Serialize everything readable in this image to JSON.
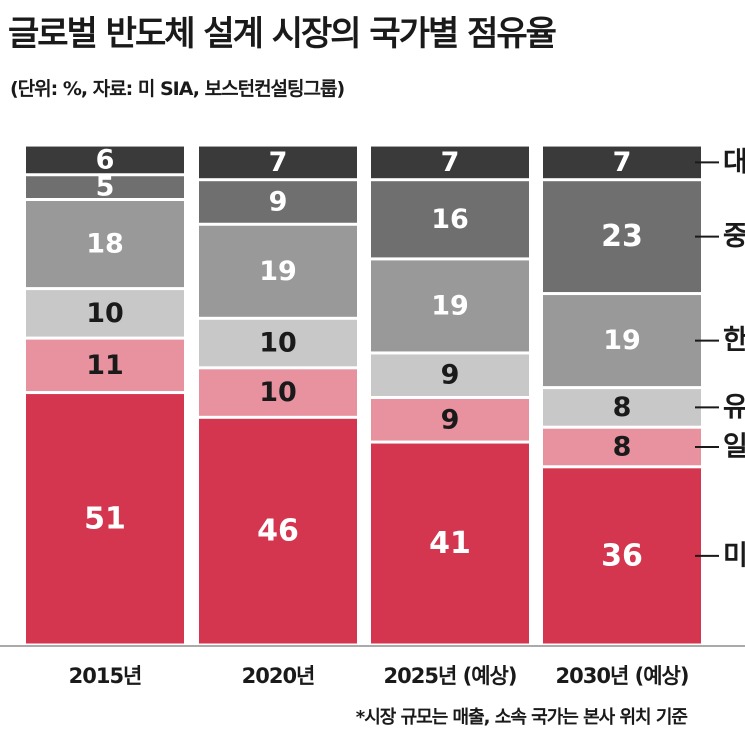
{
  "title": "글로벌 반도체 설계 시장의 국가별 점유율",
  "subtitle": "(단위: %, 자료: 미 SIA, 보스턴컨설팅그룹)",
  "footnote": "*시장 규모는 매출, 소속 국가는 본사 위치 기준",
  "colors": {
    "미국": "#d4364f",
    "일본": "#e8919f",
    "유럽": "#c8c8c8",
    "한국": "#999999",
    "중국": "#6f6f6f",
    "대만": "#3a3a3a"
  },
  "chart_data": {
    "type": "bar",
    "stacked": true,
    "categories": [
      "2015년",
      "2020년",
      "2025년 (예상)",
      "2030년 (예상)"
    ],
    "series": [
      {
        "name": "미국",
        "values": [
          51,
          46,
          41,
          36
        ]
      },
      {
        "name": "일본",
        "values": [
          11,
          10,
          9,
          8
        ]
      },
      {
        "name": "유럽",
        "values": [
          10,
          10,
          9,
          8
        ]
      },
      {
        "name": "한국",
        "values": [
          18,
          19,
          19,
          19
        ]
      },
      {
        "name": "중국",
        "values": [
          5,
          9,
          16,
          23
        ]
      },
      {
        "name": "대만",
        "values": [
          6,
          7,
          7,
          7
        ]
      }
    ],
    "legend_placement": "right, aligned to last bar"
  }
}
